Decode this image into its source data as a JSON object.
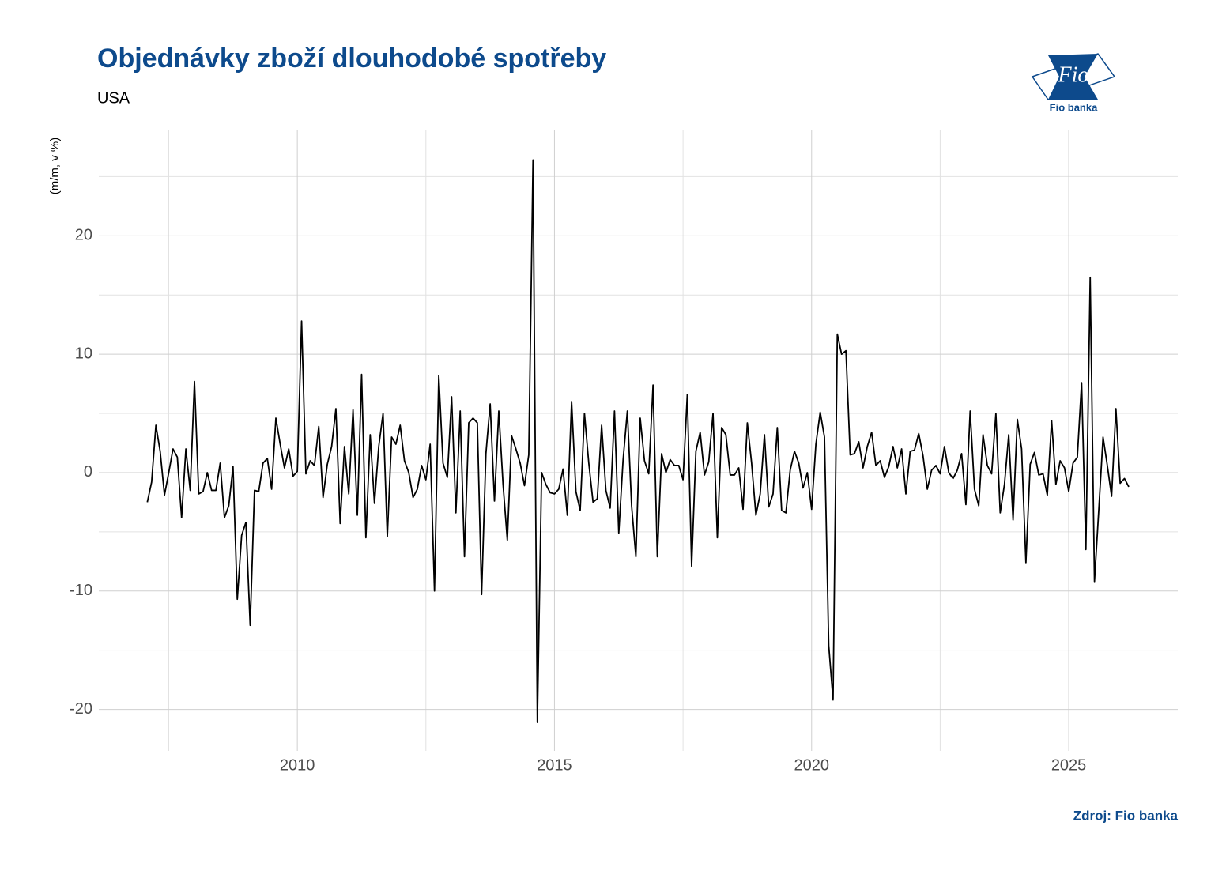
{
  "chart_data": {
    "type": "line",
    "title": "Objednávky zboží dlouhodobé spotřeby",
    "subtitle": "USA",
    "y_label": "(m/m, v %)",
    "source": "Zdroj: Fio banka",
    "logo_text": "Fio",
    "logo_caption": "Fio banka",
    "color": "#000000",
    "grid": true,
    "minor_grid": true,
    "xlim": [
      2006.14,
      2027.12
    ],
    "xticks": [
      2010,
      2015,
      2020,
      2025
    ],
    "ylim": [
      -23.5,
      28.9
    ],
    "yticks": [
      20,
      10,
      0,
      -10,
      -20
    ],
    "x": [
      2007.083,
      2007.167,
      2007.25,
      2007.333,
      2007.417,
      2007.5,
      2007.583,
      2007.667,
      2007.75,
      2007.833,
      2007.917,
      2008,
      2008.083,
      2008.167,
      2008.25,
      2008.333,
      2008.417,
      2008.5,
      2008.583,
      2008.667,
      2008.75,
      2008.833,
      2008.917,
      2009,
      2009.083,
      2009.167,
      2009.25,
      2009.333,
      2009.417,
      2009.5,
      2009.583,
      2009.667,
      2009.75,
      2009.833,
      2009.917,
      2010,
      2010.083,
      2010.167,
      2010.25,
      2010.333,
      2010.417,
      2010.5,
      2010.583,
      2010.667,
      2010.75,
      2010.833,
      2010.917,
      2011,
      2011.083,
      2011.167,
      2011.25,
      2011.333,
      2011.417,
      2011.5,
      2011.583,
      2011.667,
      2011.75,
      2011.833,
      2011.917,
      2012,
      2012.083,
      2012.167,
      2012.25,
      2012.333,
      2012.417,
      2012.5,
      2012.583,
      2012.667,
      2012.75,
      2012.833,
      2012.917,
      2013,
      2013.083,
      2013.167,
      2013.25,
      2013.333,
      2013.417,
      2013.5,
      2013.583,
      2013.667,
      2013.75,
      2013.833,
      2013.917,
      2014,
      2014.083,
      2014.167,
      2014.25,
      2014.333,
      2014.417,
      2014.5,
      2014.583,
      2014.667,
      2014.75,
      2014.833,
      2014.917,
      2015,
      2015.083,
      2015.167,
      2015.25,
      2015.333,
      2015.417,
      2015.5,
      2015.583,
      2015.667,
      2015.75,
      2015.833,
      2015.917,
      2016,
      2016.083,
      2016.167,
      2016.25,
      2016.333,
      2016.417,
      2016.5,
      2016.583,
      2016.667,
      2016.75,
      2016.833,
      2016.917,
      2017,
      2017.083,
      2017.167,
      2017.25,
      2017.333,
      2017.417,
      2017.5,
      2017.583,
      2017.667,
      2017.75,
      2017.833,
      2017.917,
      2018,
      2018.083,
      2018.167,
      2018.25,
      2018.333,
      2018.417,
      2018.5,
      2018.583,
      2018.667,
      2018.75,
      2018.833,
      2018.917,
      2019,
      2019.083,
      2019.167,
      2019.25,
      2019.333,
      2019.417,
      2019.5,
      2019.583,
      2019.667,
      2019.75,
      2019.833,
      2019.917,
      2020,
      2020.083,
      2020.167,
      2020.25,
      2020.333,
      2020.417,
      2020.5,
      2020.583,
      2020.667,
      2020.75,
      2020.833,
      2020.917,
      2021,
      2021.083,
      2021.167,
      2021.25,
      2021.333,
      2021.417,
      2021.5,
      2021.583,
      2021.667,
      2021.75,
      2021.833,
      2021.917,
      2022,
      2022.083,
      2022.167,
      2022.25,
      2022.333,
      2022.417,
      2022.5,
      2022.583,
      2022.667,
      2022.75,
      2022.833,
      2022.917,
      2023,
      2023.083,
      2023.167,
      2023.25,
      2023.333,
      2023.417,
      2023.5,
      2023.583,
      2023.667,
      2023.75,
      2023.833,
      2023.917,
      2024,
      2024.083,
      2024.167,
      2024.25,
      2024.333,
      2024.417,
      2024.5,
      2024.583,
      2024.667,
      2024.75,
      2024.833,
      2024.917,
      2025,
      2025.083,
      2025.167,
      2025.25,
      2025.333,
      2025.417,
      2025.5,
      2025.583,
      2025.667,
      2025.75,
      2025.833,
      2025.917,
      2026,
      2026.083,
      2026.167
    ],
    "values": [
      -2.5,
      -0.8,
      4.0,
      1.8,
      -1.9,
      0,
      2.0,
      1.3,
      -3.8,
      2.0,
      -1.5,
      7.7,
      -1.8,
      -1.6,
      0,
      -1.5,
      -1.5,
      0.8,
      -3.8,
      -2.8,
      0.5,
      -10.7,
      -5.3,
      -4.2,
      -12.9,
      -1.5,
      -1.6,
      0.8,
      1.2,
      -1.4,
      4.6,
      2.4,
      0.4,
      2.0,
      -0.3,
      0.1,
      12.8,
      -0.1,
      1.0,
      0.6,
      3.9,
      -2.1,
      0.7,
      2.2,
      5.4,
      -4.3,
      2.2,
      -1.8,
      5.3,
      -3.6,
      8.3,
      -5.5,
      3.2,
      -2.6,
      2.2,
      5.0,
      -5.4,
      3.0,
      2.4,
      4.0,
      1.0,
      0,
      -2.1,
      -1.4,
      0.6,
      -0.6,
      2.4,
      -10.0,
      8.2,
      0.8,
      -0.4,
      6.4,
      -3.4,
      5.2,
      -7.1,
      4.2,
      4.6,
      4.2,
      -10.3,
      1.6,
      5.8,
      -2.4,
      5.2,
      -1.0,
      -5.7,
      3.1,
      2.0,
      0.8,
      -1.1,
      1.5,
      26.4,
      -21.1,
      0,
      -1.0,
      -1.7,
      -1.8,
      -1.4,
      0.3,
      -3.6,
      6.0,
      -1.6,
      -3.2,
      5.0,
      0.8,
      -2.5,
      -2.2,
      4.0,
      -1.5,
      -3.0,
      5.2,
      -5.1,
      1.0,
      5.2,
      -2.8,
      -7.1,
      4.6,
      1.0,
      -0.1,
      7.4,
      -7.1,
      1.6,
      0,
      1.1,
      0.6,
      0.6,
      -0.6,
      6.6,
      -7.9,
      1.8,
      3.4,
      -0.2,
      0.9,
      5.0,
      -5.5,
      3.8,
      3.2,
      -0.2,
      -0.2,
      0.4,
      -3.1,
      4.2,
      0.8,
      -3.6,
      -1.8,
      3.2,
      -2.9,
      -1.8,
      3.8,
      -3.2,
      -3.4,
      0.2,
      1.8,
      0.8,
      -1.3,
      0,
      -3.1,
      2.4,
      5.1,
      3.0,
      -14.6,
      -19.2,
      11.7,
      10.0,
      10.3,
      1.5,
      1.6,
      2.6,
      0.4,
      2.2,
      3.4,
      0.6,
      1.0,
      -0.4,
      0.5,
      2.2,
      0.4,
      2.0,
      -1.8,
      1.8,
      1.9,
      3.3,
      1.4,
      -1.4,
      0.2,
      0.6,
      -0.1,
      2.2,
      0,
      -0.5,
      0.2,
      1.6,
      -2.7,
      5.2,
      -1.4,
      -2.8,
      3.2,
      0.6,
      -0.1,
      5.0,
      -3.4,
      -1.0,
      3.2,
      -4.0,
      4.5,
      2.0,
      -7.6,
      0.7,
      1.7,
      -0.2,
      -0.1,
      -1.9,
      4.4,
      -1.0,
      1.0,
      0.4,
      -1.6,
      0.8,
      1.3,
      7.6,
      -6.5,
      16.5,
      -9.2,
      -3.2,
      3.0,
      0.6,
      -2.0,
      5.4,
      -0.9,
      -0.5,
      -1.2
    ]
  }
}
